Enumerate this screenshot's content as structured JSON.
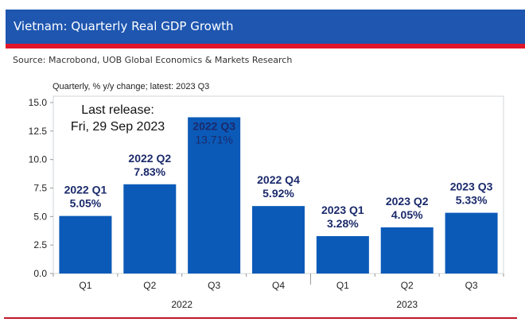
{
  "header": {
    "title": "Vietnam: Quarterly Real GDP Growth",
    "source": "Source: Macrobond, UOB Global Economics & Markets Research"
  },
  "colors": {
    "title_bar": "#1e56b0",
    "accent_red": "#e0162b",
    "bar": "#0b5ab8",
    "label": "#1b2a6b"
  },
  "chart_data": {
    "type": "bar",
    "subtitle": "Quarterly, % y/y change; latest: 2023 Q3",
    "categories": [
      "Q1",
      "Q2",
      "Q3",
      "Q4",
      "Q1",
      "Q2",
      "Q3"
    ],
    "groups": [
      {
        "label": "2022",
        "count": 4
      },
      {
        "label": "2023",
        "count": 3
      }
    ],
    "values": [
      5.05,
      7.83,
      13.71,
      5.92,
      3.28,
      4.05,
      5.33
    ],
    "data_labels": [
      {
        "period": "2022 Q1",
        "value": "5.05%"
      },
      {
        "period": "2022 Q2",
        "value": "7.83%"
      },
      {
        "period": "2022 Q3",
        "value": "13.71%"
      },
      {
        "period": "2022 Q4",
        "value": "5.92%"
      },
      {
        "period": "2023 Q1",
        "value": "3.28%"
      },
      {
        "period": "2023 Q2",
        "value": "4.05%"
      },
      {
        "period": "2023 Q3",
        "value": "5.33%"
      }
    ],
    "annotation": [
      "Last release:",
      "Fri, 29 Sep 2023"
    ],
    "yticks": [
      "0.0",
      "2.5",
      "5.0",
      "7.5",
      "10.0",
      "12.5",
      "15.0"
    ],
    "ylim": [
      0,
      15
    ],
    "grid": false,
    "legend": "none"
  }
}
